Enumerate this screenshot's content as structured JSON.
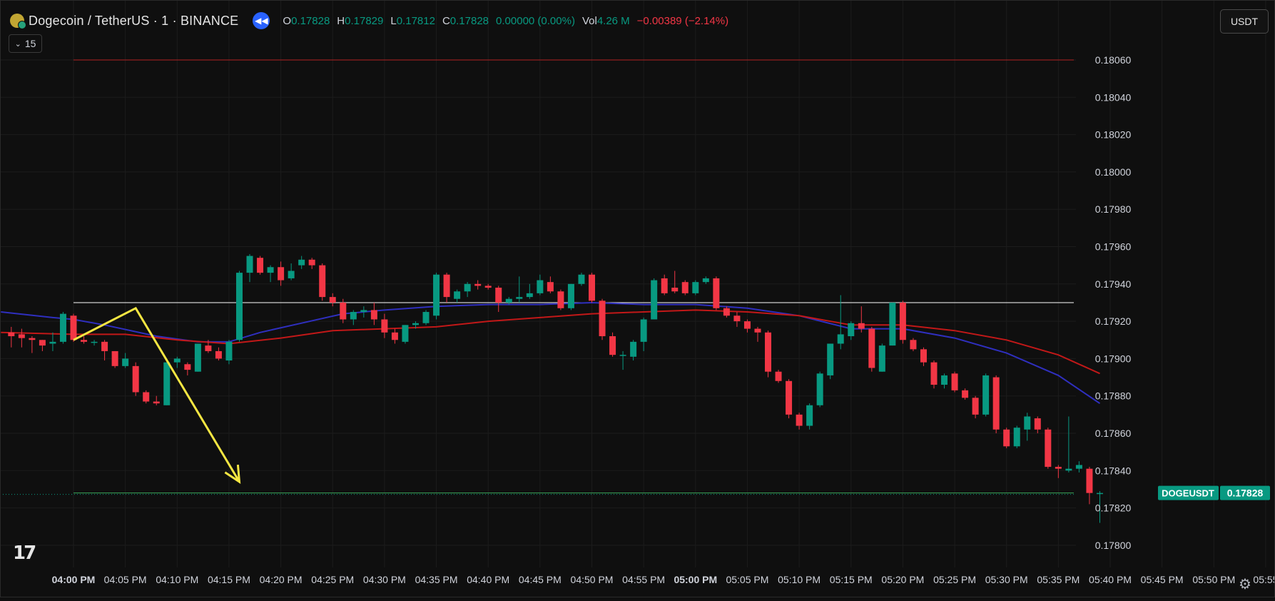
{
  "header": {
    "symbol": "Dogecoin / TetherUS · 1 · BINANCE",
    "interval": "15",
    "open_label": "O",
    "open": "0.17828",
    "high_label": "H",
    "high": "0.17829",
    "low_label": "L",
    "low": "0.17812",
    "close_label": "C",
    "close": "0.17828",
    "change": "0.00000 (0.00%)",
    "vol_label": "Vol",
    "vol": "4.26 M",
    "vol_change": "−0.00389 (−2.14%)",
    "currency_button": "USDT",
    "logo": "17"
  },
  "colors": {
    "up": "#089981",
    "down": "#f23645",
    "ema_fast": "#2f2fbf",
    "ema_slow": "#c21818",
    "annotation": "#f5e642",
    "background": "#0f0f0f"
  },
  "icons": [
    "doge-coin-icon",
    "replay-icon",
    "chevron-down-icon",
    "tradingview-logo",
    "settings-icon"
  ],
  "chart_data": {
    "type": "candlestick",
    "y_ticks": [
      "0.18060",
      "0.18040",
      "0.18020",
      "0.18000",
      "0.17980",
      "0.17960",
      "0.17940",
      "0.17920",
      "0.17900",
      "0.17880",
      "0.17860",
      "0.17840",
      "0.17820",
      "0.17800"
    ],
    "y_range": [
      0.1779,
      0.18075
    ],
    "x_ticks": [
      {
        "label": "04:00 PM",
        "min": 0,
        "bold": true
      },
      {
        "label": "04:05 PM",
        "min": 5,
        "bold": false
      },
      {
        "label": "04:10 PM",
        "min": 10,
        "bold": false
      },
      {
        "label": "04:15 PM",
        "min": 15,
        "bold": false
      },
      {
        "label": "04:20 PM",
        "min": 20,
        "bold": false
      },
      {
        "label": "04:25 PM",
        "min": 25,
        "bold": false
      },
      {
        "label": "04:30 PM",
        "min": 30,
        "bold": false
      },
      {
        "label": "04:35 PM",
        "min": 35,
        "bold": false
      },
      {
        "label": "04:40 PM",
        "min": 40,
        "bold": false
      },
      {
        "label": "04:45 PM",
        "min": 45,
        "bold": false
      },
      {
        "label": "04:50 PM",
        "min": 50,
        "bold": false
      },
      {
        "label": "04:55 PM",
        "min": 55,
        "bold": false
      },
      {
        "label": "05:00 PM",
        "min": 60,
        "bold": true
      },
      {
        "label": "05:05 PM",
        "min": 65,
        "bold": false
      },
      {
        "label": "05:10 PM",
        "min": 70,
        "bold": false
      },
      {
        "label": "05:15 PM",
        "min": 75,
        "bold": false
      },
      {
        "label": "05:20 PM",
        "min": 80,
        "bold": false
      },
      {
        "label": "05:25 PM",
        "min": 85,
        "bold": false
      },
      {
        "label": "05:30 PM",
        "min": 90,
        "bold": false
      },
      {
        "label": "05:35 PM",
        "min": 95,
        "bold": false
      },
      {
        "label": "05:40 PM",
        "min": 100,
        "bold": false
      },
      {
        "label": "05:45 PM",
        "min": 105,
        "bold": false
      },
      {
        "label": "05:50 PM",
        "min": 110,
        "bold": false
      },
      {
        "label": "05:55",
        "min": 115,
        "bold": false
      }
    ],
    "candles": [
      {
        "t": -6,
        "o": 0.17914,
        "h": 0.17917,
        "l": 0.17906,
        "c": 0.17912
      },
      {
        "t": -5,
        "o": 0.17913,
        "h": 0.17916,
        "l": 0.17906,
        "c": 0.17911
      },
      {
        "t": -4,
        "o": 0.17911,
        "h": 0.17912,
        "l": 0.17903,
        "c": 0.1791
      },
      {
        "t": -3,
        "o": 0.1791,
        "h": 0.1791,
        "l": 0.17904,
        "c": 0.17907
      },
      {
        "t": -2,
        "o": 0.17908,
        "h": 0.17914,
        "l": 0.17904,
        "c": 0.17909
      },
      {
        "t": -1,
        "o": 0.17909,
        "h": 0.17925,
        "l": 0.17908,
        "c": 0.17924
      },
      {
        "t": 0,
        "o": 0.17923,
        "h": 0.17924,
        "l": 0.17909,
        "c": 0.1791
      },
      {
        "t": 1,
        "o": 0.1791,
        "h": 0.17912,
        "l": 0.17908,
        "c": 0.17909
      },
      {
        "t": 2,
        "o": 0.17909,
        "h": 0.1791,
        "l": 0.17907,
        "c": 0.17909
      },
      {
        "t": 3,
        "o": 0.17909,
        "h": 0.1791,
        "l": 0.17899,
        "c": 0.17904
      },
      {
        "t": 4,
        "o": 0.17904,
        "h": 0.17904,
        "l": 0.17895,
        "c": 0.17896
      },
      {
        "t": 5,
        "o": 0.17896,
        "h": 0.17903,
        "l": 0.17895,
        "c": 0.179
      },
      {
        "t": 6,
        "o": 0.17896,
        "h": 0.17898,
        "l": 0.1788,
        "c": 0.17882
      },
      {
        "t": 7,
        "o": 0.17882,
        "h": 0.17883,
        "l": 0.17876,
        "c": 0.17877
      },
      {
        "t": 8,
        "o": 0.17877,
        "h": 0.1788,
        "l": 0.17875,
        "c": 0.17876
      },
      {
        "t": 9,
        "o": 0.17875,
        "h": 0.17898,
        "l": 0.17875,
        "c": 0.17898
      },
      {
        "t": 10,
        "o": 0.17898,
        "h": 0.17901,
        "l": 0.17895,
        "c": 0.179
      },
      {
        "t": 11,
        "o": 0.17897,
        "h": 0.17898,
        "l": 0.17891,
        "c": 0.17894
      },
      {
        "t": 12,
        "o": 0.17893,
        "h": 0.17908,
        "l": 0.17893,
        "c": 0.17908
      },
      {
        "t": 13,
        "o": 0.17907,
        "h": 0.1791,
        "l": 0.17903,
        "c": 0.17904
      },
      {
        "t": 14,
        "o": 0.17904,
        "h": 0.17906,
        "l": 0.17899,
        "c": 0.179
      },
      {
        "t": 15,
        "o": 0.17899,
        "h": 0.1791,
        "l": 0.17897,
        "c": 0.17909
      },
      {
        "t": 16,
        "o": 0.1791,
        "h": 0.17947,
        "l": 0.17909,
        "c": 0.17946
      },
      {
        "t": 17,
        "o": 0.17946,
        "h": 0.17956,
        "l": 0.17941,
        "c": 0.17955
      },
      {
        "t": 18,
        "o": 0.17954,
        "h": 0.17955,
        "l": 0.17945,
        "c": 0.17946
      },
      {
        "t": 19,
        "o": 0.17946,
        "h": 0.1795,
        "l": 0.17941,
        "c": 0.17949
      },
      {
        "t": 20,
        "o": 0.17949,
        "h": 0.17952,
        "l": 0.17939,
        "c": 0.17942
      },
      {
        "t": 21,
        "o": 0.17943,
        "h": 0.17951,
        "l": 0.17942,
        "c": 0.17947
      },
      {
        "t": 22,
        "o": 0.1795,
        "h": 0.17955,
        "l": 0.17948,
        "c": 0.17953
      },
      {
        "t": 23,
        "o": 0.17953,
        "h": 0.17954,
        "l": 0.17948,
        "c": 0.1795
      },
      {
        "t": 24,
        "o": 0.1795,
        "h": 0.17951,
        "l": 0.17931,
        "c": 0.17933
      },
      {
        "t": 25,
        "o": 0.17933,
        "h": 0.17935,
        "l": 0.17928,
        "c": 0.1793
      },
      {
        "t": 26,
        "o": 0.1793,
        "h": 0.17932,
        "l": 0.17919,
        "c": 0.17921
      },
      {
        "t": 27,
        "o": 0.17921,
        "h": 0.17926,
        "l": 0.17918,
        "c": 0.17925
      },
      {
        "t": 28,
        "o": 0.17925,
        "h": 0.17928,
        "l": 0.17922,
        "c": 0.17926
      },
      {
        "t": 29,
        "o": 0.17926,
        "h": 0.1793,
        "l": 0.17918,
        "c": 0.17921
      },
      {
        "t": 30,
        "o": 0.17921,
        "h": 0.17924,
        "l": 0.17911,
        "c": 0.17914
      },
      {
        "t": 31,
        "o": 0.17914,
        "h": 0.17916,
        "l": 0.17908,
        "c": 0.1791
      },
      {
        "t": 32,
        "o": 0.17909,
        "h": 0.17918,
        "l": 0.17908,
        "c": 0.17918
      },
      {
        "t": 33,
        "o": 0.17918,
        "h": 0.1792,
        "l": 0.17916,
        "c": 0.17919
      },
      {
        "t": 34,
        "o": 0.17919,
        "h": 0.17926,
        "l": 0.17918,
        "c": 0.17925
      },
      {
        "t": 35,
        "o": 0.17923,
        "h": 0.17946,
        "l": 0.17921,
        "c": 0.17945
      },
      {
        "t": 36,
        "o": 0.17945,
        "h": 0.17946,
        "l": 0.1793,
        "c": 0.17933
      },
      {
        "t": 37,
        "o": 0.17932,
        "h": 0.17937,
        "l": 0.1793,
        "c": 0.17936
      },
      {
        "t": 38,
        "o": 0.17936,
        "h": 0.17941,
        "l": 0.17933,
        "c": 0.1794
      },
      {
        "t": 39,
        "o": 0.1794,
        "h": 0.17942,
        "l": 0.17937,
        "c": 0.17939
      },
      {
        "t": 40,
        "o": 0.17939,
        "h": 0.1794,
        "l": 0.17937,
        "c": 0.17938
      },
      {
        "t": 41,
        "o": 0.17938,
        "h": 0.17939,
        "l": 0.17925,
        "c": 0.1793
      },
      {
        "t": 42,
        "o": 0.1793,
        "h": 0.17933,
        "l": 0.17929,
        "c": 0.17932
      },
      {
        "t": 43,
        "o": 0.17932,
        "h": 0.17944,
        "l": 0.1793,
        "c": 0.17933
      },
      {
        "t": 44,
        "o": 0.17933,
        "h": 0.1794,
        "l": 0.17932,
        "c": 0.17935
      },
      {
        "t": 45,
        "o": 0.17935,
        "h": 0.17945,
        "l": 0.17934,
        "c": 0.17942
      },
      {
        "t": 46,
        "o": 0.17941,
        "h": 0.17944,
        "l": 0.17935,
        "c": 0.17936
      },
      {
        "t": 47,
        "o": 0.17936,
        "h": 0.17937,
        "l": 0.17926,
        "c": 0.17927
      },
      {
        "t": 48,
        "o": 0.17927,
        "h": 0.1794,
        "l": 0.17926,
        "c": 0.1794
      },
      {
        "t": 49,
        "o": 0.1794,
        "h": 0.17946,
        "l": 0.17939,
        "c": 0.17945
      },
      {
        "t": 50,
        "o": 0.17945,
        "h": 0.17946,
        "l": 0.1793,
        "c": 0.17931
      },
      {
        "t": 51,
        "o": 0.17931,
        "h": 0.17932,
        "l": 0.1791,
        "c": 0.17912
      },
      {
        "t": 52,
        "o": 0.17912,
        "h": 0.17914,
        "l": 0.17901,
        "c": 0.17902
      },
      {
        "t": 53,
        "o": 0.17902,
        "h": 0.17904,
        "l": 0.17894,
        "c": 0.17902
      },
      {
        "t": 54,
        "o": 0.17901,
        "h": 0.1791,
        "l": 0.17899,
        "c": 0.17909
      },
      {
        "t": 55,
        "o": 0.17909,
        "h": 0.17922,
        "l": 0.17904,
        "c": 0.17921
      },
      {
        "t": 56,
        "o": 0.17921,
        "h": 0.17943,
        "l": 0.17921,
        "c": 0.17942
      },
      {
        "t": 57,
        "o": 0.17943,
        "h": 0.17945,
        "l": 0.17934,
        "c": 0.17935
      },
      {
        "t": 58,
        "o": 0.17938,
        "h": 0.17947,
        "l": 0.17935,
        "c": 0.17936
      },
      {
        "t": 59,
        "o": 0.17941,
        "h": 0.17942,
        "l": 0.17934,
        "c": 0.17935
      },
      {
        "t": 60,
        "o": 0.17935,
        "h": 0.17942,
        "l": 0.17934,
        "c": 0.17941
      },
      {
        "t": 61,
        "o": 0.17941,
        "h": 0.17944,
        "l": 0.1794,
        "c": 0.17943
      },
      {
        "t": 62,
        "o": 0.17943,
        "h": 0.17944,
        "l": 0.17926,
        "c": 0.17927
      },
      {
        "t": 63,
        "o": 0.17927,
        "h": 0.17928,
        "l": 0.17922,
        "c": 0.17923
      },
      {
        "t": 64,
        "o": 0.17923,
        "h": 0.17925,
        "l": 0.17917,
        "c": 0.1792
      },
      {
        "t": 65,
        "o": 0.1792,
        "h": 0.17921,
        "l": 0.17914,
        "c": 0.17916
      },
      {
        "t": 66,
        "o": 0.17916,
        "h": 0.17917,
        "l": 0.17909,
        "c": 0.17914
      },
      {
        "t": 67,
        "o": 0.17914,
        "h": 0.17915,
        "l": 0.1789,
        "c": 0.17893
      },
      {
        "t": 68,
        "o": 0.17893,
        "h": 0.17894,
        "l": 0.17887,
        "c": 0.17888
      },
      {
        "t": 69,
        "o": 0.17888,
        "h": 0.17889,
        "l": 0.17868,
        "c": 0.1787
      },
      {
        "t": 70,
        "o": 0.1787,
        "h": 0.17871,
        "l": 0.17862,
        "c": 0.17864
      },
      {
        "t": 71,
        "o": 0.17864,
        "h": 0.17876,
        "l": 0.17862,
        "c": 0.17875
      },
      {
        "t": 72,
        "o": 0.17875,
        "h": 0.17893,
        "l": 0.17874,
        "c": 0.17892
      },
      {
        "t": 73,
        "o": 0.17891,
        "h": 0.17908,
        "l": 0.17889,
        "c": 0.17908
      },
      {
        "t": 74,
        "o": 0.17908,
        "h": 0.17934,
        "l": 0.17905,
        "c": 0.17913
      },
      {
        "t": 75,
        "o": 0.17912,
        "h": 0.1792,
        "l": 0.1791,
        "c": 0.17919
      },
      {
        "t": 76,
        "o": 0.17919,
        "h": 0.17928,
        "l": 0.17914,
        "c": 0.17916
      },
      {
        "t": 77,
        "o": 0.17916,
        "h": 0.17917,
        "l": 0.17893,
        "c": 0.17895
      },
      {
        "t": 78,
        "o": 0.17893,
        "h": 0.17908,
        "l": 0.17893,
        "c": 0.17907
      },
      {
        "t": 79,
        "o": 0.17907,
        "h": 0.1793,
        "l": 0.17907,
        "c": 0.1793
      },
      {
        "t": 80,
        "o": 0.1793,
        "h": 0.17931,
        "l": 0.17908,
        "c": 0.1791
      },
      {
        "t": 81,
        "o": 0.1791,
        "h": 0.17911,
        "l": 0.17904,
        "c": 0.17905
      },
      {
        "t": 82,
        "o": 0.17905,
        "h": 0.17906,
        "l": 0.17896,
        "c": 0.17898
      },
      {
        "t": 83,
        "o": 0.17898,
        "h": 0.17899,
        "l": 0.17884,
        "c": 0.17886
      },
      {
        "t": 84,
        "o": 0.17886,
        "h": 0.17892,
        "l": 0.17884,
        "c": 0.17891
      },
      {
        "t": 85,
        "o": 0.17892,
        "h": 0.17893,
        "l": 0.17882,
        "c": 0.17883
      },
      {
        "t": 86,
        "o": 0.17883,
        "h": 0.17884,
        "l": 0.17878,
        "c": 0.17879
      },
      {
        "t": 87,
        "o": 0.17879,
        "h": 0.1788,
        "l": 0.17868,
        "c": 0.1787
      },
      {
        "t": 88,
        "o": 0.1787,
        "h": 0.17892,
        "l": 0.17869,
        "c": 0.17891
      },
      {
        "t": 89,
        "o": 0.1789,
        "h": 0.17891,
        "l": 0.1786,
        "c": 0.17862
      },
      {
        "t": 90,
        "o": 0.17862,
        "h": 0.17863,
        "l": 0.17852,
        "c": 0.17853
      },
      {
        "t": 91,
        "o": 0.17853,
        "h": 0.17864,
        "l": 0.17852,
        "c": 0.17863
      },
      {
        "t": 92,
        "o": 0.17862,
        "h": 0.17871,
        "l": 0.17856,
        "c": 0.17869
      },
      {
        "t": 93,
        "o": 0.17868,
        "h": 0.17869,
        "l": 0.1786,
        "c": 0.17862
      },
      {
        "t": 94,
        "o": 0.17862,
        "h": 0.17863,
        "l": 0.17841,
        "c": 0.17842
      },
      {
        "t": 95,
        "o": 0.17842,
        "h": 0.17843,
        "l": 0.17836,
        "c": 0.17841
      },
      {
        "t": 96,
        "o": 0.1784,
        "h": 0.17869,
        "l": 0.17839,
        "c": 0.17841
      },
      {
        "t": 97,
        "o": 0.17841,
        "h": 0.17845,
        "l": 0.17839,
        "c": 0.17843
      },
      {
        "t": 98,
        "o": 0.17841,
        "h": 0.17842,
        "l": 0.17822,
        "c": 0.17828
      },
      {
        "t": 99,
        "o": 0.17828,
        "h": 0.17829,
        "l": 0.17812,
        "c": 0.17828
      }
    ],
    "series": [
      {
        "name": "",
        "color": "#2f2fbf",
        "points": [
          [
            -7,
            0.17925
          ],
          [
            -2,
            0.17922
          ],
          [
            0,
            0.17921
          ],
          [
            3,
            0.17918
          ],
          [
            8,
            0.17912
          ],
          [
            12,
            0.17909
          ],
          [
            15,
            0.17909
          ],
          [
            18,
            0.17914
          ],
          [
            22,
            0.17919
          ],
          [
            26,
            0.17924
          ],
          [
            30,
            0.17926
          ],
          [
            35,
            0.17928
          ],
          [
            40,
            0.17929
          ],
          [
            45,
            0.17929
          ],
          [
            50,
            0.1793
          ],
          [
            55,
            0.17929
          ],
          [
            60,
            0.17929
          ],
          [
            65,
            0.17927
          ],
          [
            70,
            0.17923
          ],
          [
            75,
            0.17916
          ],
          [
            80,
            0.17916
          ],
          [
            85,
            0.17911
          ],
          [
            90,
            0.17903
          ],
          [
            95,
            0.17891
          ],
          [
            99,
            0.17876
          ]
        ]
      },
      {
        "name": "",
        "color": "#c21818",
        "points": [
          [
            -7,
            0.17914
          ],
          [
            0,
            0.17913
          ],
          [
            5,
            0.17913
          ],
          [
            10,
            0.1791
          ],
          [
            15,
            0.17908
          ],
          [
            20,
            0.17911
          ],
          [
            25,
            0.17915
          ],
          [
            30,
            0.17916
          ],
          [
            35,
            0.17917
          ],
          [
            40,
            0.1792
          ],
          [
            45,
            0.17922
          ],
          [
            50,
            0.17924
          ],
          [
            55,
            0.17925
          ],
          [
            60,
            0.17926
          ],
          [
            65,
            0.17925
          ],
          [
            70,
            0.17923
          ],
          [
            75,
            0.17918
          ],
          [
            80,
            0.17918
          ],
          [
            85,
            0.17915
          ],
          [
            90,
            0.1791
          ],
          [
            95,
            0.17902
          ],
          [
            99,
            0.17892
          ]
        ]
      }
    ],
    "hlines": [
      {
        "price": 0.1806,
        "color": "#b22222",
        "t_start": 0
      },
      {
        "price": 0.1793,
        "color": "#ffffff",
        "t_start": 0
      },
      {
        "price": 0.17828,
        "color": "#3aa657",
        "t_start": 0
      }
    ],
    "last_price": {
      "label": "DOGEUSDT",
      "value": "0.17828",
      "price": 0.17828,
      "color": "#089981"
    },
    "annotation_arrow": {
      "color": "#f5e642",
      "points": [
        [
          0,
          0.1791
        ],
        [
          6,
          0.17927
        ],
        [
          16,
          0.17834
        ]
      ]
    }
  }
}
